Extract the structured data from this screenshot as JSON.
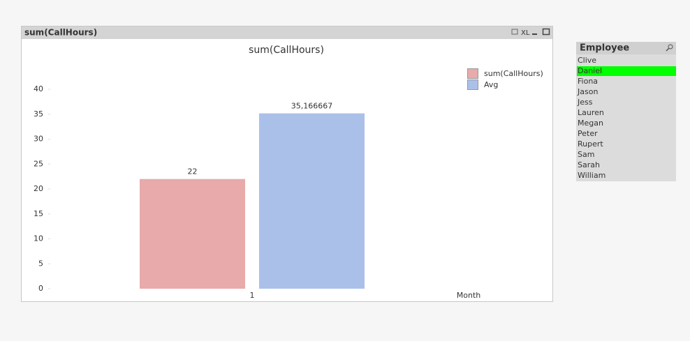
{
  "window": {
    "title": "sum(CallHours)",
    "export_label": "XL"
  },
  "chart_data": {
    "type": "bar",
    "title": "sum(CallHours)",
    "x_label": "Month",
    "categories": [
      "1"
    ],
    "series": [
      {
        "name": "sum(CallHours)",
        "color": "#e8aaaa",
        "values": [
          22
        ]
      },
      {
        "name": "Avg",
        "color": "#abc0e9",
        "values": [
          35.166667
        ],
        "value_labels": [
          "35,166667"
        ]
      }
    ],
    "ylim": [
      0,
      40
    ],
    "yticks": [
      0,
      5,
      10,
      15,
      20,
      25,
      30,
      35,
      40
    ],
    "grid": false,
    "legend": "top-right"
  },
  "listbox": {
    "title": "Employee",
    "selected": "Daniel",
    "items": [
      "Clive",
      "Daniel",
      "Fiona",
      "Jason",
      "Jess",
      "Lauren",
      "Megan",
      "Peter",
      "Rupert",
      "Sam",
      "Sarah",
      "William"
    ]
  }
}
